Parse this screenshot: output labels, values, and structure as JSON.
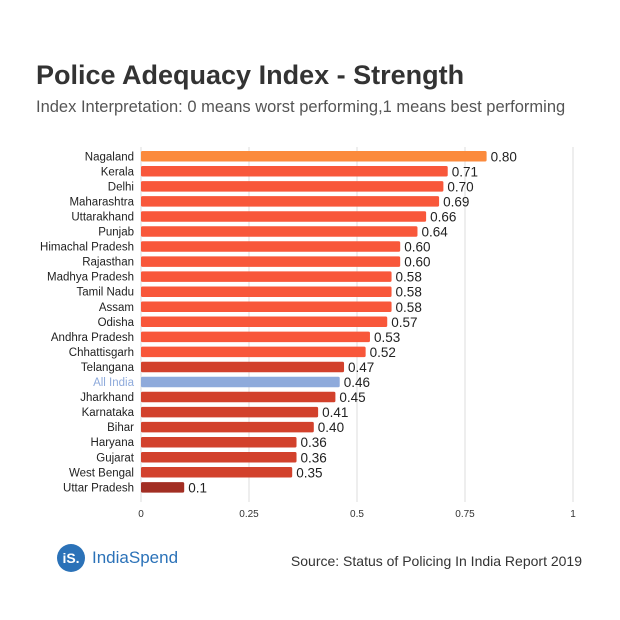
{
  "title": "Police Adequacy Index - Strength",
  "subtitle": "Index Interpretation: 0 means worst performing,1 means best performing",
  "source": "Source: Status of Policing In India Report 2019",
  "logo": {
    "mark": "iS.",
    "text": "IndiaSpend"
  },
  "chart_data": {
    "type": "bar",
    "orientation": "horizontal",
    "categories": [
      "Nagaland",
      "Kerala",
      "Delhi",
      "Maharashtra",
      "Uttarakhand",
      "Punjab",
      "Himachal Pradesh",
      "Rajasthan",
      "Madhya Pradesh",
      "Tamil Nadu",
      "Assam",
      "Odisha",
      "Andhra Pradesh",
      "Chhattisgarh",
      "Telangana",
      "All India",
      "Jharkhand",
      "Karnataka",
      "Bihar",
      "Haryana",
      "Gujarat",
      "West Bengal",
      "Uttar Pradesh"
    ],
    "values": [
      0.8,
      0.71,
      0.7,
      0.69,
      0.66,
      0.64,
      0.6,
      0.6,
      0.58,
      0.58,
      0.58,
      0.57,
      0.53,
      0.52,
      0.47,
      0.46,
      0.45,
      0.41,
      0.4,
      0.36,
      0.36,
      0.35,
      0.1
    ],
    "value_labels": [
      "0.80",
      "0.71",
      "0.70",
      "0.69",
      "0.66",
      "0.64",
      "0.60",
      "0.60",
      "0.58",
      "0.58",
      "0.58",
      "0.57",
      "0.53",
      "0.52",
      "0.47",
      "0.46",
      "0.45",
      "0.41",
      "0.40",
      "0.36",
      "0.36",
      "0.35",
      "0.1"
    ],
    "colors": [
      "#fb8a3c",
      "#f8573a",
      "#f8573a",
      "#f8573a",
      "#f8573a",
      "#f8573a",
      "#f8573a",
      "#f8573a",
      "#f8573a",
      "#f8573a",
      "#f8573a",
      "#f8573a",
      "#f8573a",
      "#f8573a",
      "#d2412c",
      "#8eaadb",
      "#d2412c",
      "#d2412c",
      "#d2412c",
      "#d2412c",
      "#d2412c",
      "#d2412c",
      "#a22e23"
    ],
    "highlight_label_color": "#8eaadb",
    "xlim": [
      0,
      1
    ],
    "xticks": [
      0,
      0.25,
      0.5,
      0.75,
      1
    ],
    "xtick_labels": [
      "0",
      "0.25",
      "0.5",
      "0.75",
      "1"
    ],
    "grid": true
  }
}
